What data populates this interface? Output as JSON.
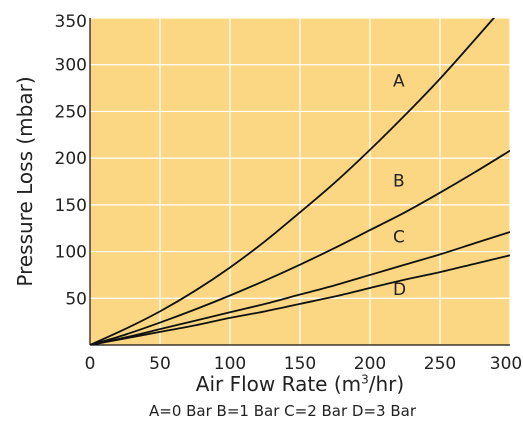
{
  "chart_data": {
    "type": "line",
    "title": "",
    "xlabel": {
      "pre": "Air Flow Rate (m",
      "sup": "3",
      "post": "/hr)"
    },
    "ylabel": "Pressure Loss (mbar)",
    "xlim": [
      0,
      300
    ],
    "ylim": [
      0,
      350
    ],
    "xticks": [
      0,
      50,
      100,
      150,
      200,
      250,
      300
    ],
    "yticks": [
      50,
      100,
      150,
      200,
      250,
      300,
      350
    ],
    "grid": true,
    "background_color": "#fcd783",
    "grid_color": "#ffffff",
    "line_color": "#111111",
    "x": [
      0,
      25,
      50,
      75,
      100,
      125,
      150,
      175,
      200,
      225,
      250,
      275,
      300
    ],
    "series": [
      {
        "name": "A",
        "values": [
          0,
          17,
          36,
          58,
          83,
          111,
          142,
          174,
          209,
          246,
          285,
          327,
          370
        ],
        "label_at": [
          225,
          283
        ]
      },
      {
        "name": "B",
        "values": [
          0,
          11,
          24,
          38,
          53,
          69,
          86,
          104,
          123,
          142,
          163,
          185,
          208
        ],
        "label_at": [
          225,
          176
        ]
      },
      {
        "name": "C",
        "values": [
          0,
          8,
          17,
          26,
          35,
          44,
          54,
          64,
          75,
          86,
          97,
          109,
          121
        ],
        "label_at": [
          225,
          116
        ]
      },
      {
        "name": "D",
        "values": [
          0,
          7,
          14,
          21,
          29,
          36,
          44,
          52,
          61,
          70,
          78,
          87,
          96
        ],
        "label_at": [
          225,
          60
        ]
      }
    ],
    "note": "A=0 Bar  B=1 Bar  C=2 Bar  D=3 Bar"
  }
}
